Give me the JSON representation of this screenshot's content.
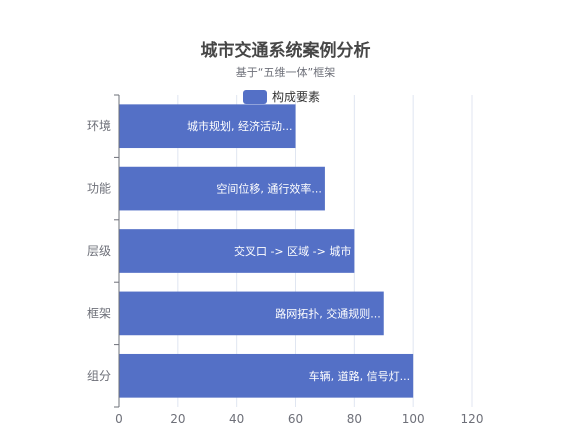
{
  "chart_data": {
    "type": "bar",
    "orientation": "horizontal",
    "title": "城市交通系统案例分析",
    "subtitle": "基于“五维一体”框架",
    "categories": [
      "环境",
      "功能",
      "层级",
      "框架",
      "组分"
    ],
    "series": [
      {
        "name": "构成要素",
        "color": "#5470c6",
        "values": [
          60,
          70,
          80,
          90,
          100
        ],
        "labels": [
          "城市规划, 经济活动...",
          "空间位移, 通行效率...",
          "交叉口 -> 区域 -> 城市",
          "路网拓扑, 交通规则...",
          "车辆, 道路, 信号灯..."
        ]
      }
    ],
    "xlim": [
      0,
      120
    ],
    "xticks": [
      0,
      20,
      40,
      60,
      80,
      100,
      120
    ],
    "grid": true,
    "legend_position": "top"
  }
}
